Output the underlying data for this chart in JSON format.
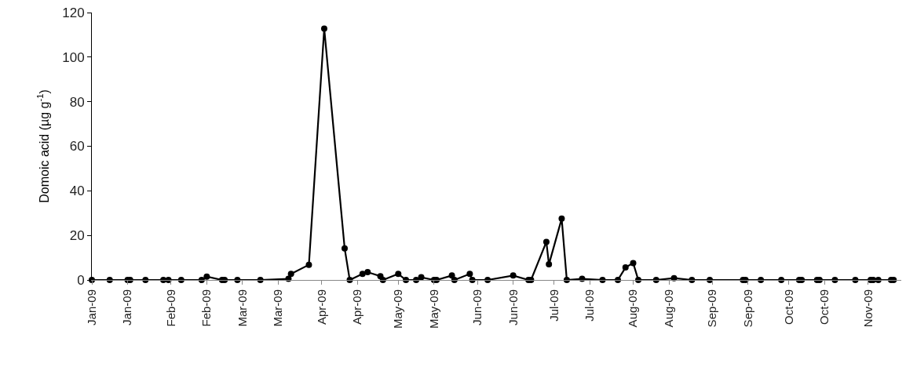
{
  "chart_data": {
    "type": "line",
    "ylabel": "Domoic acid (µg g$^{-1}$)",
    "x": [
      "2009-01-01",
      "2009-01-08",
      "2009-01-15",
      "2009-01-16",
      "2009-01-22",
      "2009-01-29",
      "2009-01-31",
      "2009-02-05",
      "2009-02-13",
      "2009-02-15",
      "2009-02-21",
      "2009-02-22",
      "2009-02-27",
      "2009-03-08",
      "2009-03-19",
      "2009-03-20",
      "2009-03-27",
      "2009-04-02",
      "2009-04-10",
      "2009-04-12",
      "2009-04-17",
      "2009-04-19",
      "2009-04-24",
      "2009-04-25",
      "2009-05-01",
      "2009-05-04",
      "2009-05-08",
      "2009-05-10",
      "2009-05-15",
      "2009-05-16",
      "2009-05-22",
      "2009-05-23",
      "2009-05-29",
      "2009-05-30",
      "2009-06-05",
      "2009-06-15",
      "2009-06-21",
      "2009-06-22",
      "2009-06-28",
      "2009-06-29",
      "2009-07-04",
      "2009-07-06",
      "2009-07-12",
      "2009-07-20",
      "2009-07-26",
      "2009-07-29",
      "2009-08-01",
      "2009-08-03",
      "2009-08-10",
      "2009-08-17",
      "2009-08-24",
      "2009-08-31",
      "2009-09-13",
      "2009-09-14",
      "2009-09-20",
      "2009-09-28",
      "2009-10-05",
      "2009-10-06",
      "2009-10-12",
      "2009-10-13",
      "2009-10-19",
      "2009-10-27",
      "2009-11-02",
      "2009-11-03",
      "2009-11-05",
      "2009-11-10",
      "2009-11-11"
    ],
    "series": [
      {
        "color": "#000000",
        "values": [
          0,
          0,
          0,
          0,
          0,
          0,
          0,
          0,
          0,
          1.5,
          0,
          0,
          0,
          0,
          0.5,
          2.7,
          6.8,
          112.8,
          14.2,
          0,
          2.7,
          3.5,
          1.7,
          0,
          2.7,
          0,
          0,
          1.2,
          0,
          0,
          2,
          0,
          2.7,
          0,
          0,
          2,
          0,
          0,
          17.1,
          7,
          27.5,
          0,
          0.5,
          0,
          0,
          5.6,
          7.6,
          0,
          0,
          0.8,
          0,
          0,
          0,
          0,
          0,
          0,
          0,
          0,
          0,
          0,
          0,
          0,
          0,
          0,
          0,
          0,
          0
        ]
      }
    ],
    "xlim": [
      "2009-01-01",
      "2009-11-14"
    ],
    "xticks": [
      {
        "value": "2009-01-01",
        "label": "Jan-09"
      },
      {
        "value": "2009-01-15",
        "label": "Jan-09"
      },
      {
        "value": "2009-02-01",
        "label": "Feb-09"
      },
      {
        "value": "2009-02-15",
        "label": "Feb-09"
      },
      {
        "value": "2009-03-01",
        "label": "Mar-09"
      },
      {
        "value": "2009-03-15",
        "label": "Mar-09"
      },
      {
        "value": "2009-04-01",
        "label": "Apr-09"
      },
      {
        "value": "2009-04-15",
        "label": "Apr-09"
      },
      {
        "value": "2009-05-01",
        "label": "May-09"
      },
      {
        "value": "2009-05-15",
        "label": "May-09"
      },
      {
        "value": "2009-06-01",
        "label": "Jun-09"
      },
      {
        "value": "2009-06-15",
        "label": "Jun-09"
      },
      {
        "value": "2009-07-01",
        "label": "Jul-09"
      },
      {
        "value": "2009-07-15",
        "label": "Jul-09"
      },
      {
        "value": "2009-08-01",
        "label": "Aug-09"
      },
      {
        "value": "2009-08-15",
        "label": "Aug-09"
      },
      {
        "value": "2009-09-01",
        "label": "Sep-09"
      },
      {
        "value": "2009-09-15",
        "label": "Sep-09"
      },
      {
        "value": "2009-10-01",
        "label": "Oct-09"
      },
      {
        "value": "2009-10-15",
        "label": "Oct-09"
      },
      {
        "value": "2009-11-01",
        "label": "Nov-09"
      }
    ],
    "ylim": [
      0,
      120
    ],
    "yticks": [
      0,
      20,
      40,
      60,
      80,
      100,
      120
    ],
    "marker": "circle",
    "line_style": "solid"
  }
}
